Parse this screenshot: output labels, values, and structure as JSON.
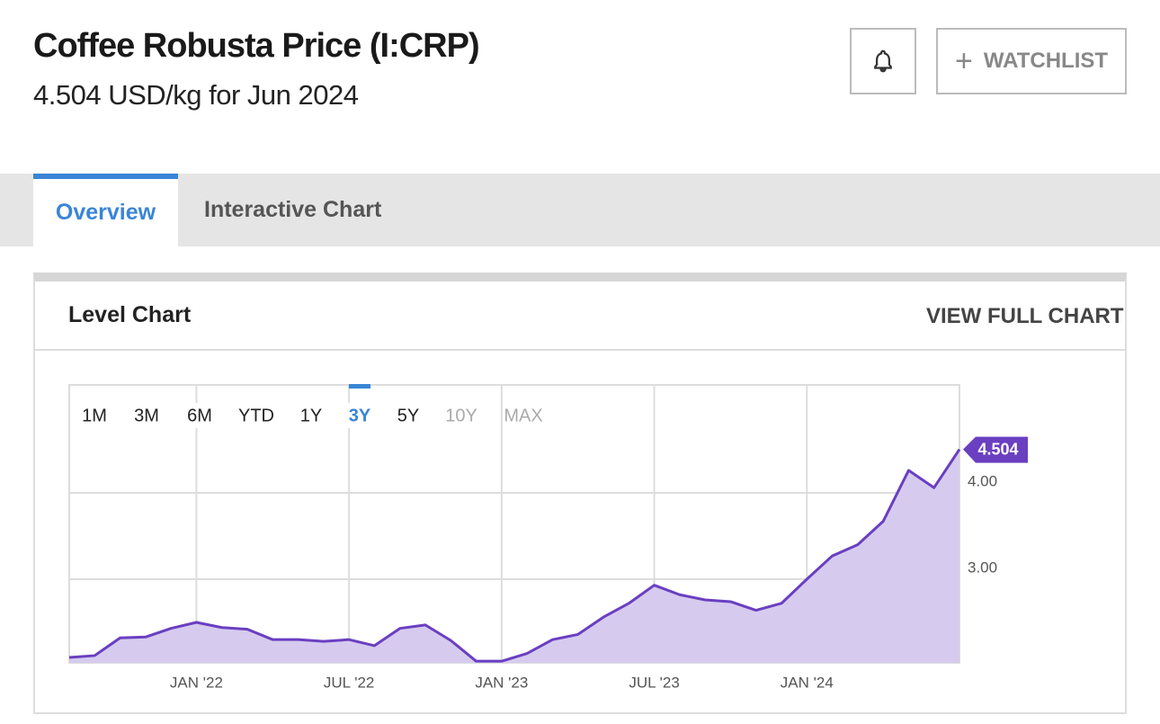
{
  "header": {
    "title": "Coffee Robusta Price (I:CRP)",
    "subtitle": "4.504 USD/kg for Jun 2024",
    "watchlist_button": "WATCHLIST"
  },
  "tabs": [
    {
      "label": "Overview",
      "active": true
    },
    {
      "label": "Interactive Chart",
      "active": false
    }
  ],
  "card": {
    "title": "Level Chart",
    "link": "VIEW FULL CHART"
  },
  "ranges": [
    {
      "label": "1M"
    },
    {
      "label": "3M"
    },
    {
      "label": "6M"
    },
    {
      "label": "YTD"
    },
    {
      "label": "1Y"
    },
    {
      "label": "3Y",
      "active": true
    },
    {
      "label": "5Y"
    },
    {
      "label": "10Y",
      "disabled": true
    },
    {
      "label": "MAX",
      "disabled": true
    }
  ],
  "chart_data": {
    "type": "area",
    "categories": [
      null,
      null,
      null,
      null,
      null,
      "JAN '22",
      null,
      null,
      null,
      null,
      null,
      "JUL '22",
      null,
      null,
      null,
      null,
      null,
      "JAN '23",
      null,
      null,
      null,
      null,
      null,
      "JUL '23",
      null,
      null,
      null,
      null,
      null,
      "JAN '24",
      null,
      null,
      null,
      null,
      null,
      null
    ],
    "values": [
      2.094,
      2.115,
      2.32,
      2.33,
      2.43,
      2.5,
      2.44,
      2.42,
      2.3,
      2.3,
      2.28,
      2.3,
      2.23,
      2.43,
      2.47,
      2.29,
      2.05,
      2.05,
      2.14,
      2.3,
      2.36,
      2.56,
      2.72,
      2.93,
      2.82,
      2.76,
      2.74,
      2.64,
      2.72,
      3.0,
      3.27,
      3.4,
      3.67,
      4.26,
      4.06,
      4.504
    ],
    "color": "#6a3fc1",
    "fill": "#d6cbee",
    "ylim": [
      2.031,
      5.25
    ],
    "yticks": [
      {
        "value": 3,
        "label": "3.00"
      },
      {
        "value": 4,
        "label": "4.00"
      }
    ],
    "grid": true
  }
}
